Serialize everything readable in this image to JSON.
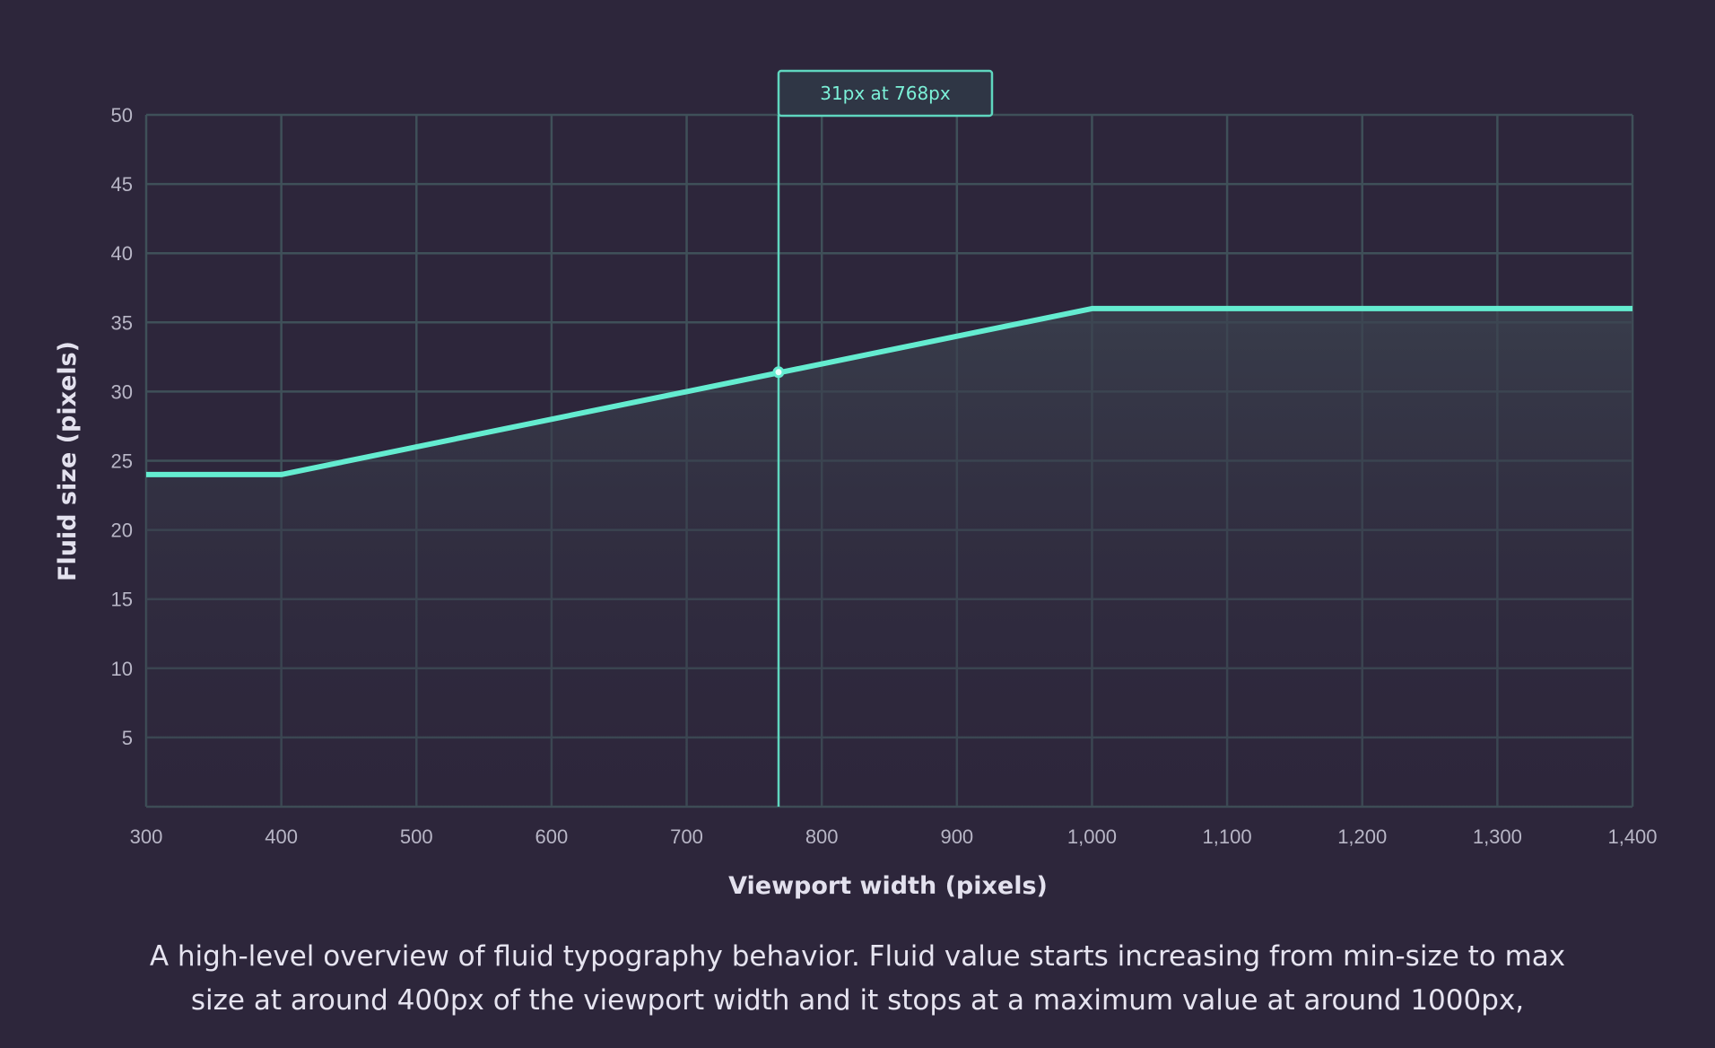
{
  "chart_data": {
    "type": "line",
    "xlabel": "Viewport width (pixels)",
    "ylabel": "Fluid size (pixels)",
    "xlim": [
      300,
      1400
    ],
    "ylim": [
      0,
      50
    ],
    "x_ticks": [
      300,
      400,
      500,
      600,
      700,
      800,
      900,
      1000,
      1100,
      1200,
      1300,
      1400
    ],
    "x_tick_labels": [
      "300",
      "400",
      "500",
      "600",
      "700",
      "800",
      "900",
      "1,000",
      "1,100",
      "1,200",
      "1,300",
      "1,400"
    ],
    "y_ticks": [
      5,
      10,
      15,
      20,
      25,
      30,
      35,
      40,
      45,
      50
    ],
    "y_tick_labels": [
      "5",
      "10",
      "15",
      "20",
      "25",
      "30",
      "35",
      "40",
      "45",
      "50"
    ],
    "grid": true,
    "series": [
      {
        "x": [
          300,
          400,
          1000,
          1400
        ],
        "y": [
          24,
          24,
          36,
          36
        ]
      }
    ],
    "marker": {
      "x": 768,
      "y": 31.4,
      "label": "31px at 768px"
    },
    "colors": {
      "line": "#64ecd0",
      "grid": "#3f5059",
      "background": "#2d263b",
      "tooltip_border": "#5fd6bf"
    }
  },
  "caption": {
    "line1": "A high-level overview of fluid typography behavior. Fluid value starts increasing from min-size to max",
    "line2": "size at around 400px of the viewport width and it stops at a maximum value at around 1000px,"
  }
}
